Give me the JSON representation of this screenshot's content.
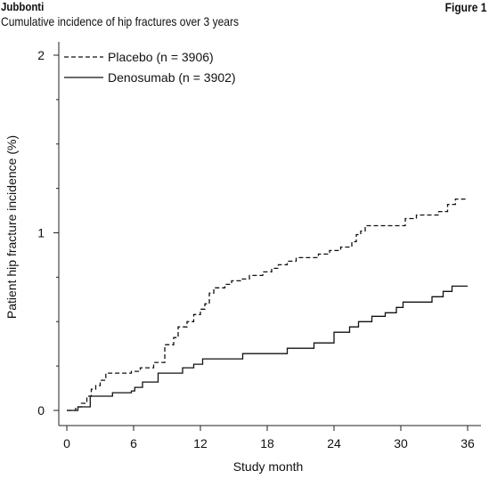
{
  "header": {
    "author": "Jubbonti",
    "subtitle": "Cumulative incidence of hip fractures over 3 years",
    "figure_label": "Figure 1"
  },
  "chart_data": {
    "type": "line",
    "step": true,
    "title": "Cumulative incidence of hip fractures over 3 years",
    "xlabel": "Study month",
    "ylabel": "Patient hip fracture incidence (%)",
    "xlim": [
      0,
      36
    ],
    "ylim": [
      0,
      2
    ],
    "xticks": [
      0,
      6,
      12,
      18,
      24,
      30,
      36
    ],
    "yticks": [
      0,
      1,
      2
    ],
    "legend_position": "top-left",
    "grid": false,
    "series": [
      {
        "name": "Placebo (n = 3906)",
        "style": "dashed",
        "color": "#111111",
        "points": [
          [
            0,
            0
          ],
          [
            0.8,
            0.02
          ],
          [
            1.3,
            0.04
          ],
          [
            1.8,
            0.08
          ],
          [
            2.2,
            0.12
          ],
          [
            2.6,
            0.14
          ],
          [
            3.0,
            0.17
          ],
          [
            3.5,
            0.21
          ],
          [
            5.8,
            0.22
          ],
          [
            6.6,
            0.24
          ],
          [
            7.8,
            0.27
          ],
          [
            8.8,
            0.37
          ],
          [
            9.6,
            0.41
          ],
          [
            10.0,
            0.47
          ],
          [
            10.8,
            0.5
          ],
          [
            11.4,
            0.54
          ],
          [
            12.0,
            0.57
          ],
          [
            12.4,
            0.6
          ],
          [
            12.8,
            0.66
          ],
          [
            13.2,
            0.69
          ],
          [
            14.2,
            0.71
          ],
          [
            14.8,
            0.73
          ],
          [
            15.6,
            0.74
          ],
          [
            16.4,
            0.76
          ],
          [
            17.6,
            0.78
          ],
          [
            18.4,
            0.8
          ],
          [
            19.0,
            0.82
          ],
          [
            19.8,
            0.84
          ],
          [
            20.6,
            0.86
          ],
          [
            22.6,
            0.88
          ],
          [
            23.6,
            0.9
          ],
          [
            24.6,
            0.92
          ],
          [
            25.6,
            0.95
          ],
          [
            26.0,
            0.99
          ],
          [
            26.4,
            1.01
          ],
          [
            26.8,
            1.04
          ],
          [
            30.4,
            1.08
          ],
          [
            31.4,
            1.1
          ],
          [
            33.4,
            1.12
          ],
          [
            34.2,
            1.16
          ],
          [
            34.9,
            1.19
          ],
          [
            36,
            1.19
          ]
        ]
      },
      {
        "name": "Denosumab (n = 3902)",
        "style": "solid",
        "color": "#111111",
        "points": [
          [
            0,
            0
          ],
          [
            1.0,
            0.02
          ],
          [
            2.1,
            0.08
          ],
          [
            4.1,
            0.1
          ],
          [
            5.8,
            0.11
          ],
          [
            6.1,
            0.13
          ],
          [
            6.8,
            0.16
          ],
          [
            8.2,
            0.21
          ],
          [
            10.4,
            0.24
          ],
          [
            11.4,
            0.26
          ],
          [
            12.2,
            0.29
          ],
          [
            15.8,
            0.32
          ],
          [
            19.8,
            0.35
          ],
          [
            22.2,
            0.38
          ],
          [
            24.0,
            0.44
          ],
          [
            25.4,
            0.47
          ],
          [
            26.2,
            0.5
          ],
          [
            27.4,
            0.53
          ],
          [
            28.6,
            0.55
          ],
          [
            29.6,
            0.58
          ],
          [
            30.2,
            0.61
          ],
          [
            32.8,
            0.64
          ],
          [
            33.8,
            0.67
          ],
          [
            34.6,
            0.7
          ],
          [
            36,
            0.7
          ]
        ]
      }
    ]
  }
}
